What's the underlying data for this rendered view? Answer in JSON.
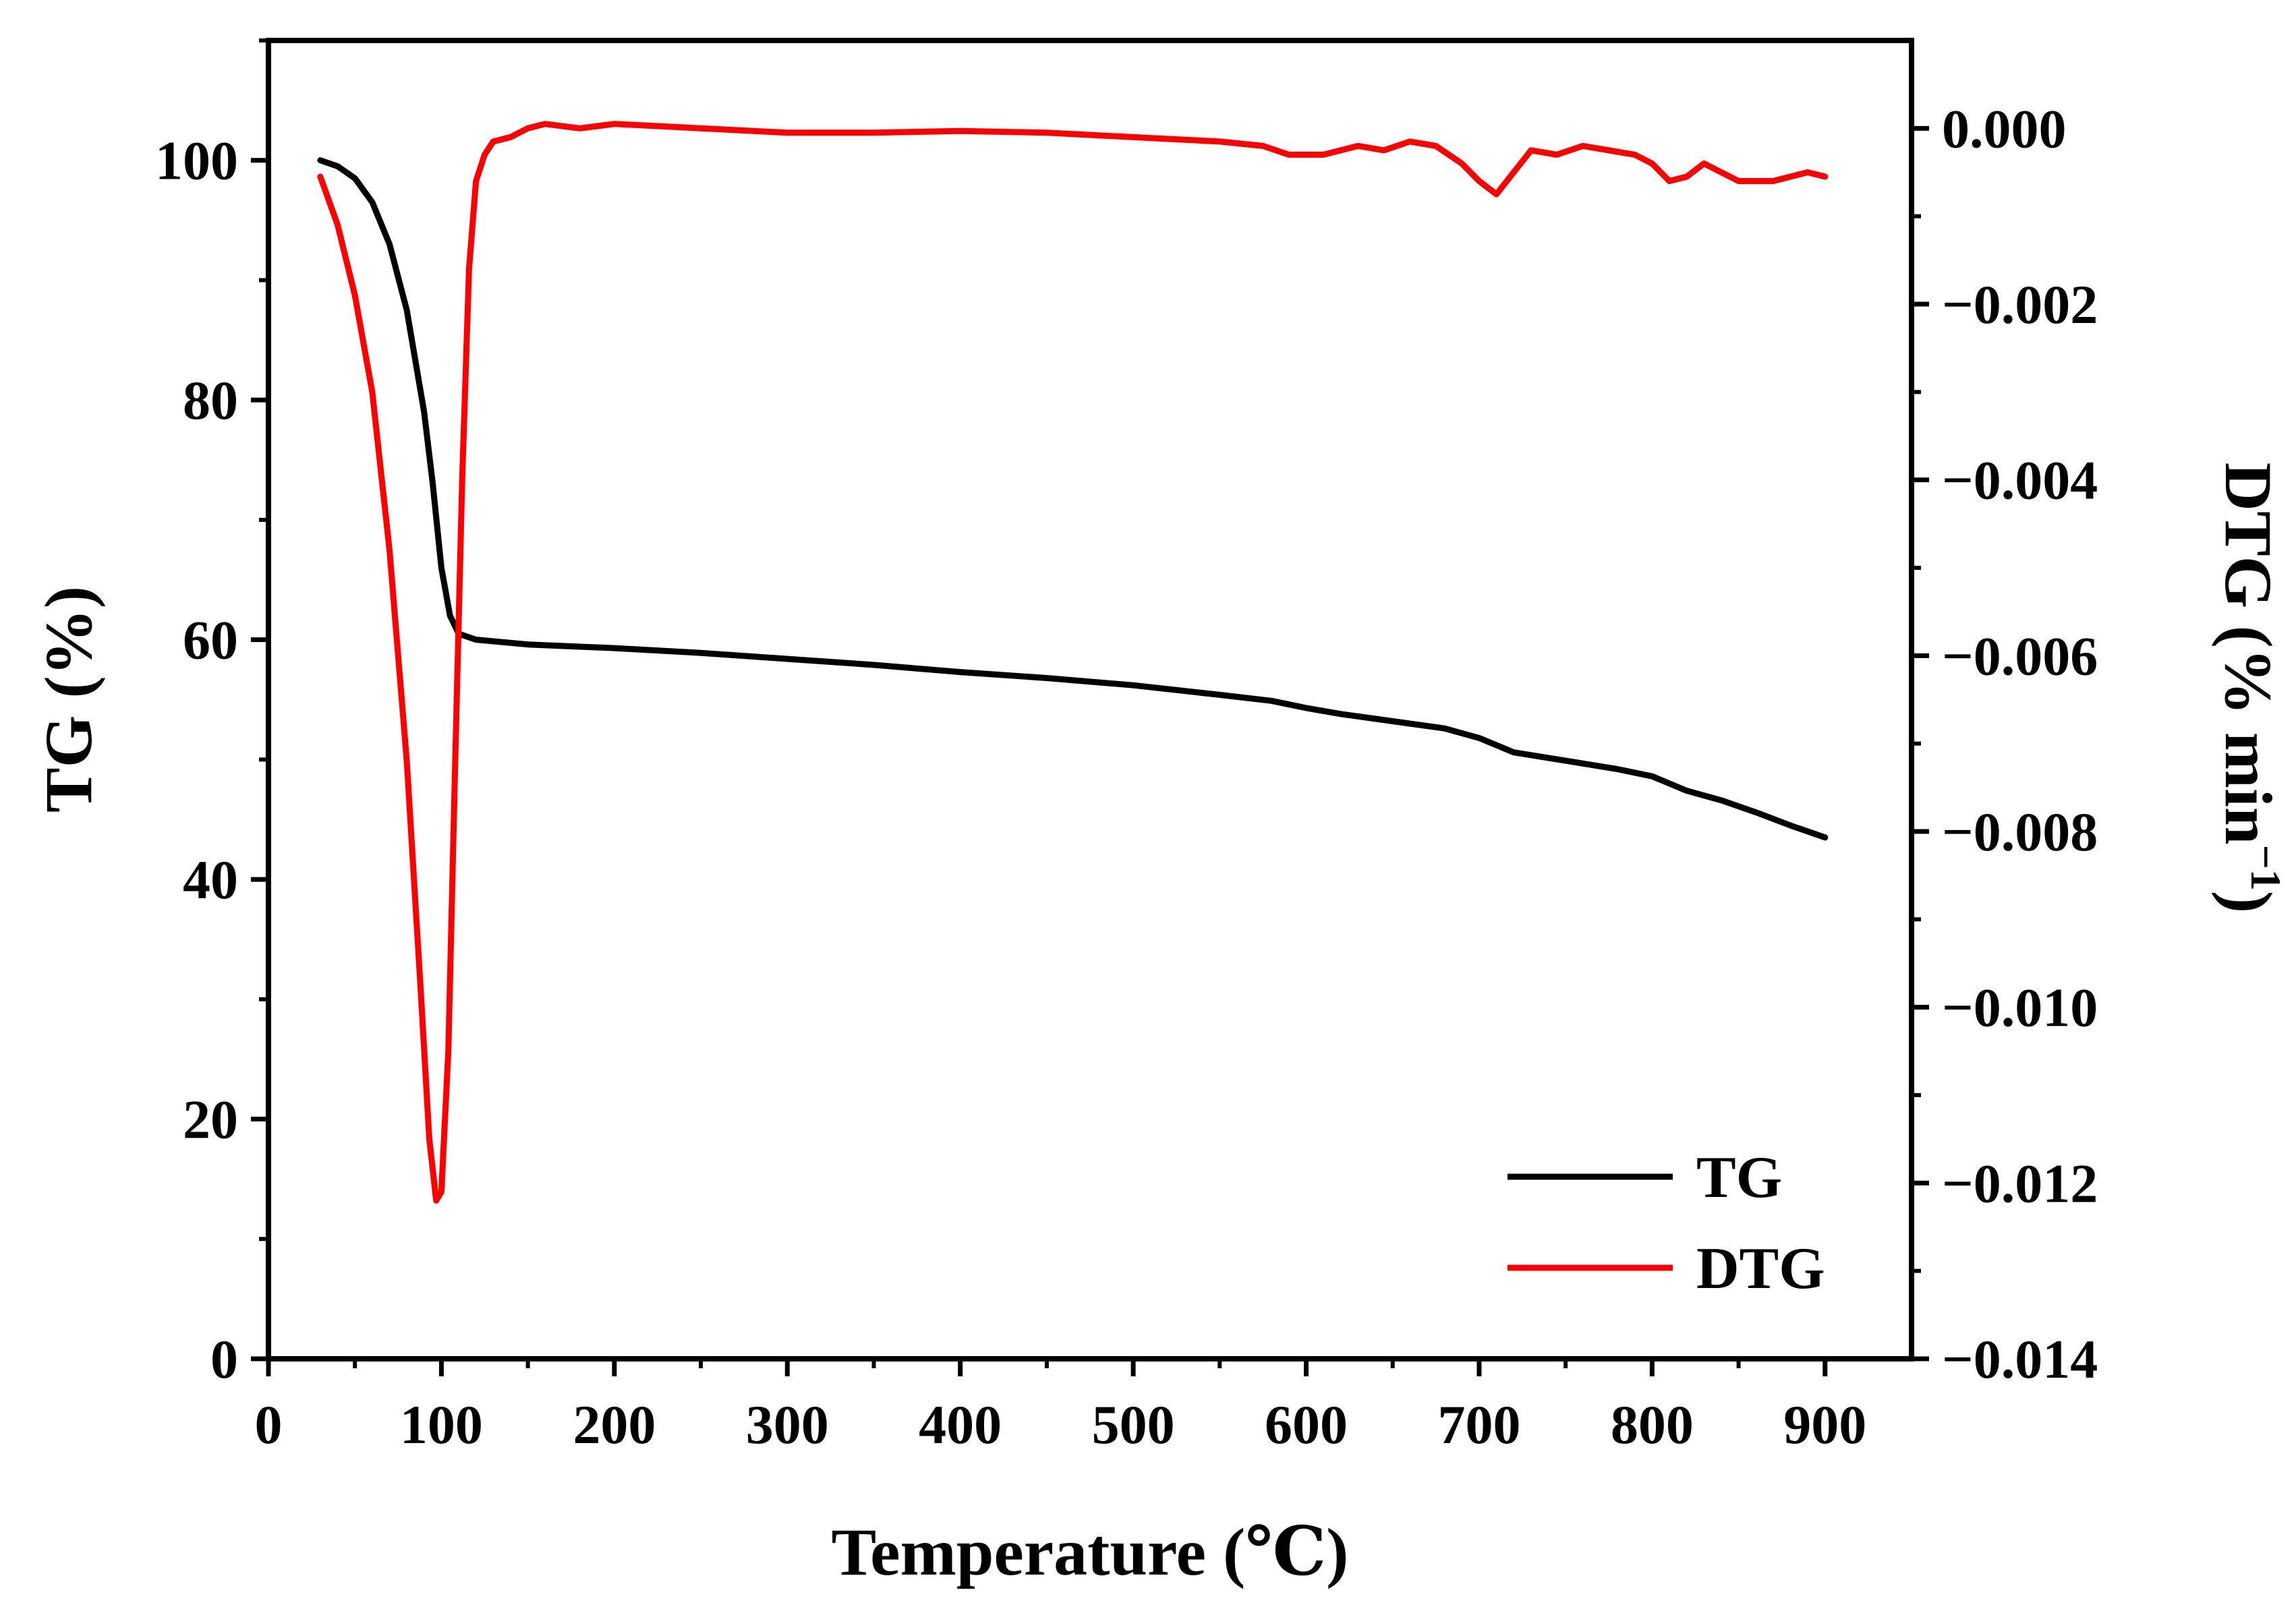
{
  "chart_data": {
    "type": "line",
    "xlabel": "Temperature (℃)",
    "ylabel_left": "TG (%)",
    "ylabel_right_main": "DTG (% min",
    "ylabel_right_sup": "−1",
    "ylabel_right_close": ")",
    "xlim": [
      0,
      950
    ],
    "ylim_left": [
      0,
      110
    ],
    "ylim_right": [
      -0.014,
      0.001
    ],
    "x_ticks": [
      "0",
      "100",
      "200",
      "300",
      "400",
      "500",
      "600",
      "700",
      "800",
      "900"
    ],
    "x_tick_values": [
      0,
      100,
      200,
      300,
      400,
      500,
      600,
      700,
      800,
      900
    ],
    "y_left_ticks": [
      "0",
      "20",
      "40",
      "60",
      "80",
      "100"
    ],
    "y_left_tick_values": [
      0,
      20,
      40,
      60,
      80,
      100
    ],
    "y_right_ticks": [
      "0.000",
      "−0.002",
      "−0.004",
      "−0.006",
      "−0.008",
      "−0.010",
      "−0.012",
      "−0.014"
    ],
    "y_right_tick_values": [
      0,
      -0.002,
      -0.004,
      -0.006,
      -0.008,
      -0.01,
      -0.012,
      -0.014
    ],
    "legend_position": "bottom-right",
    "series": [
      {
        "name": "TG",
        "axis": "left",
        "color": "#000000",
        "points": [
          [
            30,
            100
          ],
          [
            40,
            99.5
          ],
          [
            50,
            98.5
          ],
          [
            60,
            96.5
          ],
          [
            70,
            93
          ],
          [
            80,
            87.5
          ],
          [
            90,
            79
          ],
          [
            95,
            73
          ],
          [
            100,
            66
          ],
          [
            105,
            62
          ],
          [
            110,
            60.5
          ],
          [
            120,
            60
          ],
          [
            150,
            59.6
          ],
          [
            200,
            59.3
          ],
          [
            250,
            58.9
          ],
          [
            300,
            58.4
          ],
          [
            350,
            57.9
          ],
          [
            400,
            57.3
          ],
          [
            450,
            56.8
          ],
          [
            500,
            56.2
          ],
          [
            550,
            55.4
          ],
          [
            580,
            54.9
          ],
          [
            600,
            54.3
          ],
          [
            620,
            53.8
          ],
          [
            650,
            53.2
          ],
          [
            680,
            52.6
          ],
          [
            700,
            51.8
          ],
          [
            720,
            50.6
          ],
          [
            750,
            49.9
          ],
          [
            780,
            49.2
          ],
          [
            800,
            48.6
          ],
          [
            820,
            47.4
          ],
          [
            840,
            46.6
          ],
          [
            860,
            45.6
          ],
          [
            880,
            44.5
          ],
          [
            900,
            43.5
          ]
        ]
      },
      {
        "name": "DTG",
        "axis": "right",
        "color": "#ff0000",
        "points": [
          [
            30,
            -0.00055
          ],
          [
            40,
            -0.0011
          ],
          [
            50,
            -0.0019
          ],
          [
            60,
            -0.003
          ],
          [
            70,
            -0.0048
          ],
          [
            80,
            -0.0072
          ],
          [
            88,
            -0.0098
          ],
          [
            93,
            -0.0115
          ],
          [
            97,
            -0.0122
          ],
          [
            100,
            -0.0121
          ],
          [
            104,
            -0.0105
          ],
          [
            108,
            -0.0072
          ],
          [
            112,
            -0.004
          ],
          [
            116,
            -0.0016
          ],
          [
            120,
            -0.0006
          ],
          [
            125,
            -0.0003
          ],
          [
            130,
            -0.00015
          ],
          [
            140,
            -0.0001
          ],
          [
            150,
            0.0
          ],
          [
            160,
            5e-05
          ],
          [
            180,
            0.0
          ],
          [
            200,
            5e-05
          ],
          [
            250,
            0.0
          ],
          [
            300,
            -5e-05
          ],
          [
            350,
            -5e-05
          ],
          [
            400,
            -3e-05
          ],
          [
            450,
            -5e-05
          ],
          [
            500,
            -0.0001
          ],
          [
            550,
            -0.00015
          ],
          [
            575,
            -0.0002
          ],
          [
            590,
            -0.0003
          ],
          [
            610,
            -0.0003
          ],
          [
            620,
            -0.00025
          ],
          [
            630,
            -0.0002
          ],
          [
            645,
            -0.00025
          ],
          [
            660,
            -0.00015
          ],
          [
            675,
            -0.0002
          ],
          [
            690,
            -0.0004
          ],
          [
            700,
            -0.0006
          ],
          [
            710,
            -0.00075
          ],
          [
            720,
            -0.0005
          ],
          [
            730,
            -0.00025
          ],
          [
            745,
            -0.0003
          ],
          [
            760,
            -0.0002
          ],
          [
            775,
            -0.00025
          ],
          [
            790,
            -0.0003
          ],
          [
            800,
            -0.0004
          ],
          [
            810,
            -0.0006
          ],
          [
            820,
            -0.00055
          ],
          [
            830,
            -0.0004
          ],
          [
            840,
            -0.0005
          ],
          [
            850,
            -0.0006
          ],
          [
            870,
            -0.0006
          ],
          [
            890,
            -0.0005
          ],
          [
            900,
            -0.00055
          ]
        ]
      }
    ]
  }
}
